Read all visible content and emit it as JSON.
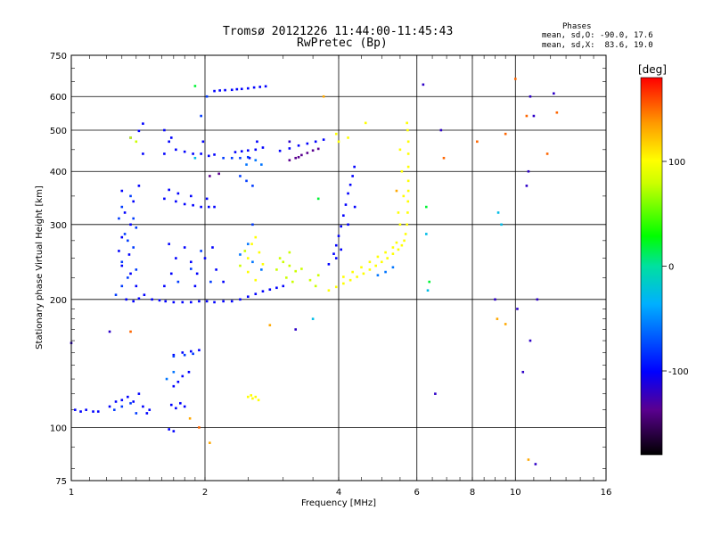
{
  "header": {
    "title": "Tromsø 20121226 11:44:00-11:45:43",
    "subtitle": "RwPretec (Bp)"
  },
  "phase_info": {
    "heading": "Phases",
    "line_o": "mean, sd,O: -90.0, 17.6",
    "line_x": "mean, sd,X:  83.6, 19.0"
  },
  "chart_data": {
    "type": "scatter",
    "xlabel": "Frequency [MHz]",
    "ylabel": "Stationary phase Virtual Height [km]",
    "xscale": "log",
    "yscale": "log",
    "xlim": [
      1,
      16
    ],
    "ylim": [
      75,
      750
    ],
    "x_ticks": [
      1,
      2,
      4,
      6,
      8,
      10,
      16
    ],
    "x_tick_labels": [
      "1",
      "2",
      "4",
      "6",
      "8",
      "10",
      "16"
    ],
    "y_ticks": [
      75,
      100,
      200,
      300,
      400,
      500,
      600,
      750
    ],
    "y_tick_labels": [
      "75",
      "100",
      "200",
      "300",
      "400",
      "500",
      "600",
      "750"
    ],
    "grid": true,
    "colorbar": {
      "label": "[deg]",
      "range": [
        -180,
        180
      ],
      "ticks": [
        100,
        0,
        -100
      ],
      "tick_labels": [
        "100",
        "0",
        "-100"
      ]
    },
    "series": [
      {
        "color_value": -100,
        "points": [
          [
            1.02,
            110
          ],
          [
            1.05,
            109
          ],
          [
            1.08,
            110
          ],
          [
            1.12,
            109
          ],
          [
            1.15,
            109
          ],
          [
            1.22,
            112
          ],
          [
            1.26,
            115
          ],
          [
            1.3,
            116
          ],
          [
            1.34,
            118
          ],
          [
            1.38,
            115
          ],
          [
            1.42,
            120
          ],
          [
            1.45,
            112
          ],
          [
            1.48,
            108
          ],
          [
            1.5,
            110
          ],
          [
            1.68,
            113
          ],
          [
            1.72,
            111
          ],
          [
            1.76,
            114
          ],
          [
            1.8,
            112
          ],
          [
            1.7,
            125
          ],
          [
            1.74,
            128
          ],
          [
            1.78,
            132
          ],
          [
            1.84,
            135
          ],
          [
            1.7,
            148
          ],
          [
            1.78,
            150
          ],
          [
            1.86,
            151
          ],
          [
            1.94,
            152
          ],
          [
            1.66,
            99
          ],
          [
            1.7,
            98
          ],
          [
            1.33,
            200
          ],
          [
            1.38,
            198
          ],
          [
            1.42,
            201
          ],
          [
            1.46,
            205
          ],
          [
            1.52,
            200
          ],
          [
            1.58,
            199
          ],
          [
            1.63,
            198
          ],
          [
            1.7,
            197
          ],
          [
            1.78,
            197
          ],
          [
            1.86,
            197
          ],
          [
            1.94,
            198
          ],
          [
            2.02,
            198
          ],
          [
            2.1,
            197
          ],
          [
            2.2,
            198
          ],
          [
            2.3,
            198
          ],
          [
            2.4,
            200
          ],
          [
            2.5,
            203
          ],
          [
            2.6,
            206
          ],
          [
            2.7,
            209
          ],
          [
            2.8,
            211
          ],
          [
            2.9,
            213
          ],
          [
            3.0,
            215
          ],
          [
            1.3,
            240
          ],
          [
            1.35,
            255
          ],
          [
            1.3,
            280
          ],
          [
            1.36,
            300
          ],
          [
            1.32,
            320
          ],
          [
            1.38,
            340
          ],
          [
            1.3,
            360
          ],
          [
            1.42,
            370
          ],
          [
            1.36,
            230
          ],
          [
            1.4,
            215
          ],
          [
            1.28,
            260
          ],
          [
            1.62,
            215
          ],
          [
            1.68,
            230
          ],
          [
            1.72,
            250
          ],
          [
            1.8,
            265
          ],
          [
            1.86,
            245
          ],
          [
            1.92,
            230
          ],
          [
            2.0,
            250
          ],
          [
            2.08,
            265
          ],
          [
            2.12,
            235
          ],
          [
            2.2,
            220
          ],
          [
            1.66,
            270
          ],
          [
            1.9,
            215
          ],
          [
            1.62,
            345
          ],
          [
            1.66,
            362
          ],
          [
            1.72,
            340
          ],
          [
            1.8,
            335
          ],
          [
            1.88,
            333
          ],
          [
            1.96,
            330
          ],
          [
            2.04,
            330
          ],
          [
            2.1,
            330
          ],
          [
            1.74,
            355
          ],
          [
            1.86,
            350
          ],
          [
            2.02,
            345
          ],
          [
            1.62,
            440
          ],
          [
            1.66,
            470
          ],
          [
            1.72,
            450
          ],
          [
            1.8,
            445
          ],
          [
            1.88,
            440
          ],
          [
            1.96,
            440
          ],
          [
            2.04,
            435
          ],
          [
            2.1,
            438
          ],
          [
            1.62,
            500
          ],
          [
            1.68,
            480
          ],
          [
            1.98,
            470
          ],
          [
            2.34,
            444
          ],
          [
            2.42,
            446
          ],
          [
            2.5,
            448
          ],
          [
            2.6,
            450
          ],
          [
            2.7,
            455
          ],
          [
            2.52,
            430
          ],
          [
            2.62,
            470
          ],
          [
            2.95,
            447
          ],
          [
            3.1,
            453
          ],
          [
            3.25,
            460
          ],
          [
            3.4,
            465
          ],
          [
            3.55,
            470
          ],
          [
            3.7,
            475
          ],
          [
            2.1,
            618
          ],
          [
            2.16,
            620
          ],
          [
            2.22,
            621
          ],
          [
            2.3,
            622
          ],
          [
            2.36,
            624
          ],
          [
            2.42,
            625
          ],
          [
            2.5,
            627
          ],
          [
            2.58,
            630
          ],
          [
            2.66,
            632
          ],
          [
            2.74,
            634
          ],
          [
            1.42,
            498
          ],
          [
            1.45,
            518
          ],
          [
            1.36,
            480
          ],
          [
            1.45,
            440
          ],
          [
            3.8,
            242
          ],
          [
            3.9,
            256
          ],
          [
            3.95,
            268
          ],
          [
            4.0,
            282
          ],
          [
            4.05,
            297
          ],
          [
            4.1,
            315
          ],
          [
            4.15,
            334
          ],
          [
            4.2,
            355
          ],
          [
            4.25,
            372
          ],
          [
            4.3,
            390
          ],
          [
            4.34,
            410
          ],
          [
            4.05,
            262
          ],
          [
            3.95,
            250
          ],
          [
            4.2,
            300
          ],
          [
            4.35,
            330
          ]
        ]
      },
      {
        "color_value": -80,
        "points": [
          [
            1.26,
            205
          ],
          [
            1.3,
            215
          ],
          [
            1.34,
            225
          ],
          [
            1.3,
            245
          ],
          [
            1.38,
            265
          ],
          [
            1.32,
            285
          ],
          [
            1.38,
            310
          ],
          [
            1.3,
            330
          ],
          [
            1.36,
            350
          ],
          [
            1.28,
            310
          ],
          [
            1.4,
            295
          ],
          [
            1.34,
            275
          ],
          [
            1.4,
            235
          ],
          [
            1.25,
            110
          ],
          [
            1.3,
            112
          ],
          [
            1.36,
            114
          ],
          [
            1.4,
            108
          ],
          [
            1.7,
            147
          ],
          [
            1.8,
            148
          ],
          [
            1.88,
            149
          ],
          [
            1.74,
            220
          ],
          [
            1.86,
            236
          ],
          [
            1.96,
            260
          ],
          [
            2.06,
            220
          ],
          [
            2.2,
            430
          ],
          [
            2.3,
            430
          ],
          [
            2.4,
            430
          ],
          [
            2.5,
            432
          ],
          [
            2.4,
            390
          ],
          [
            2.48,
            380
          ],
          [
            2.56,
            370
          ],
          [
            1.96,
            540
          ],
          [
            2.02,
            600
          ],
          [
            2.56,
            300
          ]
        ]
      },
      {
        "color_value": -60,
        "points": [
          [
            1.64,
            130
          ],
          [
            1.7,
            135
          ],
          [
            2.48,
            415
          ],
          [
            2.6,
            425
          ],
          [
            2.68,
            415
          ],
          [
            2.4,
            255
          ],
          [
            2.5,
            270
          ],
          [
            2.56,
            245
          ],
          [
            2.68,
            235
          ],
          [
            4.9,
            228
          ],
          [
            5.1,
            232
          ],
          [
            5.3,
            238
          ]
        ]
      },
      {
        "color_value": -140,
        "points": [
          [
            3.1,
            425
          ],
          [
            3.2,
            430
          ],
          [
            3.3,
            437
          ],
          [
            3.4,
            442
          ],
          [
            3.5,
            448
          ],
          [
            3.6,
            452
          ],
          [
            3.25,
            432
          ],
          [
            2.05,
            390
          ],
          [
            2.15,
            395
          ]
        ]
      },
      {
        "color_value": 100,
        "points": [
          [
            2.5,
            250
          ],
          [
            2.55,
            270
          ],
          [
            2.6,
            280
          ],
          [
            2.65,
            258
          ],
          [
            2.5,
            232
          ],
          [
            2.6,
            222
          ],
          [
            2.7,
            242
          ],
          [
            2.5,
            118
          ],
          [
            2.56,
            117
          ],
          [
            2.6,
            118
          ],
          [
            2.64,
            116
          ],
          [
            2.54,
            119
          ],
          [
            3.8,
            210
          ],
          [
            3.95,
            214
          ],
          [
            4.1,
            218
          ],
          [
            4.25,
            222
          ],
          [
            4.4,
            226
          ],
          [
            4.55,
            230
          ],
          [
            4.7,
            235
          ],
          [
            4.85,
            240
          ],
          [
            5.0,
            245
          ],
          [
            5.15,
            250
          ],
          [
            5.3,
            256
          ],
          [
            5.45,
            262
          ],
          [
            5.55,
            268
          ],
          [
            5.62,
            275
          ],
          [
            5.66,
            285
          ],
          [
            5.7,
            300
          ],
          [
            5.72,
            320
          ],
          [
            5.73,
            340
          ],
          [
            5.74,
            360
          ],
          [
            5.74,
            380
          ],
          [
            5.74,
            410
          ],
          [
            5.74,
            440
          ],
          [
            5.74,
            470
          ],
          [
            5.72,
            500
          ],
          [
            5.7,
            520
          ],
          [
            4.5,
            238
          ],
          [
            4.7,
            245
          ],
          [
            4.9,
            252
          ],
          [
            5.1,
            258
          ],
          [
            5.3,
            265
          ],
          [
            5.4,
            272
          ],
          [
            4.3,
            232
          ],
          [
            4.1,
            226
          ],
          [
            4.2,
            480
          ],
          [
            4.6,
            520
          ],
          [
            4.0,
            470
          ],
          [
            3.95,
            490
          ],
          [
            5.5,
            450
          ],
          [
            5.55,
            400
          ],
          [
            5.6,
            350
          ],
          [
            5.5,
            300
          ],
          [
            5.45,
            320
          ]
        ]
      },
      {
        "color_value": 80,
        "points": [
          [
            2.9,
            235
          ],
          [
            3.0,
            245
          ],
          [
            3.1,
            240
          ],
          [
            3.2,
            233
          ],
          [
            3.05,
            225
          ],
          [
            3.15,
            220
          ],
          [
            3.3,
            236
          ],
          [
            2.95,
            250
          ],
          [
            3.1,
            258
          ],
          [
            3.45,
            222
          ],
          [
            3.55,
            215
          ],
          [
            3.6,
            228
          ],
          [
            1.36,
            480
          ],
          [
            1.4,
            470
          ],
          [
            2.4,
            240
          ],
          [
            2.46,
            260
          ]
        ]
      },
      {
        "color_value": 20,
        "points": [
          [
            3.6,
            345
          ],
          [
            1.9,
            635
          ],
          [
            6.3,
            330
          ],
          [
            6.4,
            220
          ]
        ]
      },
      {
        "color_value": -30,
        "points": [
          [
            9.15,
            320
          ],
          [
            9.3,
            300
          ],
          [
            6.3,
            285
          ],
          [
            6.35,
            210
          ],
          [
            3.5,
            180
          ],
          [
            1.9,
            430
          ]
        ]
      },
      {
        "color_value": 150,
        "points": [
          [
            10.0,
            660
          ],
          [
            10.6,
            540
          ],
          [
            12.4,
            550
          ],
          [
            9.5,
            490
          ],
          [
            11.8,
            440
          ],
          [
            1.36,
            168
          ],
          [
            1.94,
            100
          ],
          [
            6.9,
            430
          ],
          [
            8.2,
            470
          ]
        ]
      },
      {
        "color_value": 130,
        "points": [
          [
            3.7,
            600
          ],
          [
            9.5,
            175
          ],
          [
            9.1,
            180
          ],
          [
            10.7,
            84
          ],
          [
            2.05,
            92
          ],
          [
            1.85,
            105
          ],
          [
            2.8,
            174
          ],
          [
            5.4,
            360
          ]
        ]
      },
      {
        "color_value": -120,
        "points": [
          [
            10.1,
            190
          ],
          [
            11.2,
            200
          ],
          [
            10.8,
            160
          ],
          [
            10.4,
            135
          ],
          [
            11.0,
            540
          ],
          [
            10.6,
            370
          ],
          [
            10.7,
            400
          ],
          [
            10.8,
            600
          ],
          [
            12.2,
            610
          ],
          [
            11.1,
            82
          ],
          [
            1.22,
            168
          ],
          [
            1.0,
            158
          ],
          [
            3.2,
            170
          ],
          [
            6.6,
            120
          ],
          [
            9.0,
            200
          ],
          [
            6.8,
            500
          ],
          [
            6.2,
            640
          ],
          [
            3.1,
            470
          ]
        ]
      }
    ]
  }
}
